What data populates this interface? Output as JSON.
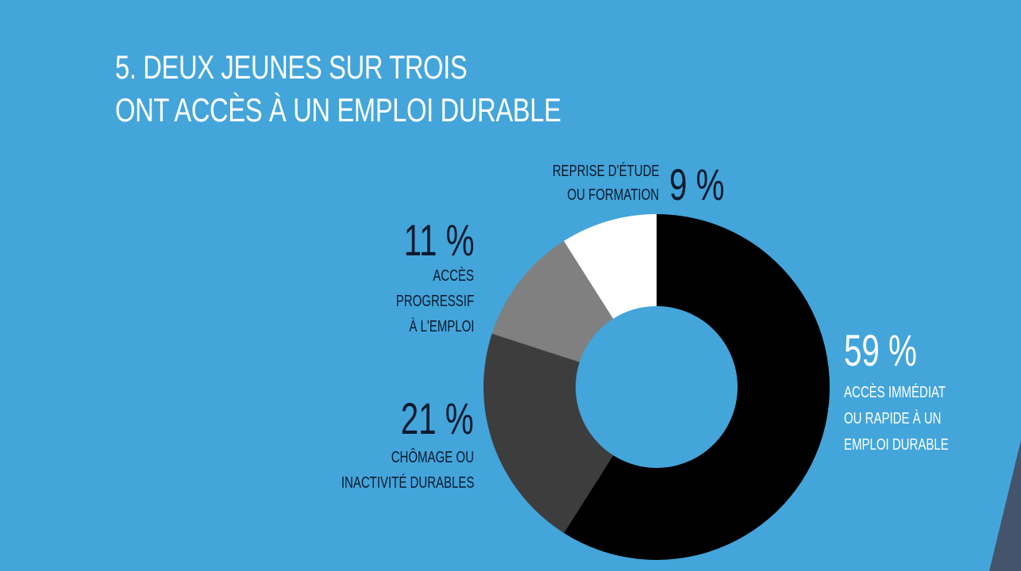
{
  "title": {
    "line1": "5. DEUX JEUNES SUR TROIS",
    "line2": "ONT ACCÈS À UN EMPLOI DURABLE"
  },
  "colors": {
    "background": "#43a5da",
    "corner_shape": "#44546a",
    "title_text": "#ffffff",
    "label_text": "#0c1a2e"
  },
  "labels": {
    "reprise": {
      "pct": "9 %",
      "desc1": "REPRISE D'ÉTUDE",
      "desc2": "OU FORMATION"
    },
    "progressif": {
      "pct": "11 %",
      "desc1": "ACCÈS",
      "desc2": "PROGRESSIF",
      "desc3": "À L'EMPLOI"
    },
    "chomage": {
      "pct": "21 %",
      "desc1": "CHÔMAGE OU",
      "desc2": "INACTIVITÉ DURABLES"
    },
    "immediat": {
      "pct": "59 %",
      "desc1": "ACCÈS IMMÉDIAT",
      "desc2": "OU RAPIDE À UN",
      "desc3": "EMPLOI DURABLE"
    }
  },
  "chart_data": {
    "type": "pie",
    "subtype": "donut",
    "title": "5. DEUX JEUNES SUR TROIS ONT ACCÈS À UN EMPLOI DURABLE",
    "categories": [
      "Accès immédiat ou rapide à un emploi durable",
      "Chômage ou inactivité durables",
      "Accès progressif à l'emploi",
      "Reprise d'étude ou formation"
    ],
    "values": [
      59,
      21,
      11,
      9
    ],
    "unit": "%",
    "colors": [
      "#000000",
      "#3d3d3d",
      "#808080",
      "#ffffff"
    ],
    "start_angle": "12 o'clock, clockwise",
    "center": [
      827,
      488
    ],
    "outer_radius": 218,
    "inner_radius": 102
  }
}
